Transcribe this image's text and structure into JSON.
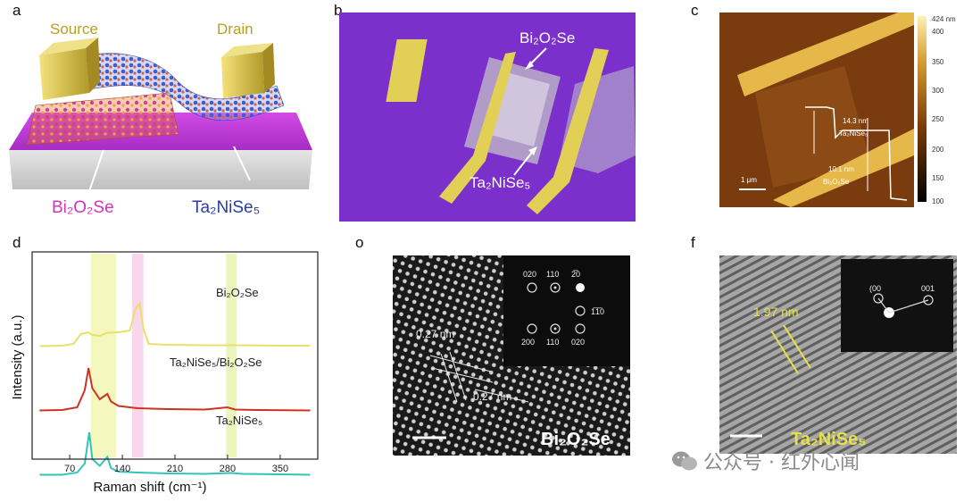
{
  "panel_labels": {
    "a": "a",
    "b": "b",
    "c": "c",
    "d": "d",
    "e": "o",
    "f": "f"
  },
  "panel_a": {
    "source": "Source",
    "drain": "Drain",
    "material1": "Bi₂O₂Se",
    "material2": "Ta₂NiSe₅",
    "colors": {
      "substrate_top": "#c23bd8",
      "contact": "#d8c44a"
    }
  },
  "panel_b": {
    "label_top": "Bi₂O₂Se",
    "label_bottom": "Ta₂NiSe₅",
    "colors": {
      "background": "#7a2ec9",
      "electrode": "#e2cf55"
    }
  },
  "panel_c": {
    "annotation1_line1": "14.3 nm",
    "annotation1_line2": "Ta₂NiSe₅",
    "annotation2_line1": "10.1 nm",
    "annotation2_line2": "Bi₂O₂Se",
    "scale_label": "1 μm",
    "colorbar_ticks": [
      "424 nm",
      "400",
      "350",
      "300",
      "250",
      "200",
      "150",
      "100"
    ]
  },
  "panel_d": {
    "ylabel": "Intensity (a.u.)",
    "xlabel": "Raman shift (cm⁻¹)"
  },
  "chart_data": {
    "type": "line",
    "xlabel": "Raman shift (cm⁻¹)",
    "ylabel": "Intensity (a.u.)",
    "xlim": [
      20,
      400
    ],
    "x_ticks": [
      70,
      140,
      210,
      280,
      350
    ],
    "series": [
      {
        "name": "Bi₂O₂Se",
        "color": "#e8e06a",
        "x": [
          30,
          60,
          75,
          85,
          95,
          100,
          110,
          120,
          135,
          150,
          158,
          163,
          168,
          175,
          200,
          250,
          300,
          350,
          390
        ],
        "y": [
          0.05,
          0.06,
          0.1,
          0.32,
          0.36,
          0.3,
          0.28,
          0.35,
          0.36,
          0.4,
          0.9,
          1.0,
          0.45,
          0.1,
          0.08,
          0.07,
          0.07,
          0.06,
          0.06
        ]
      },
      {
        "name": "Ta₂NiSe₅/Bi₂O₂Se",
        "color": "#cc3322",
        "x": [
          30,
          60,
          80,
          90,
          95,
          100,
          110,
          120,
          125,
          135,
          160,
          200,
          250,
          280,
          290,
          320,
          390
        ],
        "y": [
          0.05,
          0.06,
          0.12,
          0.5,
          1.0,
          0.55,
          0.3,
          0.42,
          0.25,
          0.15,
          0.1,
          0.08,
          0.07,
          0.12,
          0.07,
          0.06,
          0.05
        ]
      },
      {
        "name": "Ta₂NiSe₅",
        "color": "#33c4b8",
        "x": [
          30,
          60,
          80,
          90,
          96,
          100,
          110,
          120,
          125,
          135,
          160,
          200,
          250,
          285,
          300,
          350,
          390
        ],
        "y": [
          0.05,
          0.05,
          0.1,
          0.3,
          1.0,
          0.4,
          0.25,
          0.45,
          0.2,
          0.12,
          0.1,
          0.08,
          0.07,
          0.09,
          0.07,
          0.06,
          0.05
        ]
      }
    ],
    "highlight_bands": [
      {
        "from": 98,
        "to": 132,
        "color": "#f2f5a8"
      },
      {
        "from": 153,
        "to": 168,
        "color": "#f6c8e6"
      },
      {
        "from": 278,
        "to": 292,
        "color": "#e4f2a8"
      }
    ]
  },
  "panel_e": {
    "lattice1": "0.27 nm",
    "lattice2": "0.27 nm",
    "saed_top_labels": [
      "020",
      "110",
      "2̅0"
    ],
    "saed_right_label": "1̅1̅0",
    "saed_bottom_labels": [
      "200",
      "110",
      "020"
    ],
    "material": "Bi₂O₂Se"
  },
  "panel_f": {
    "spacing": "1.97 nm",
    "saed_label1": "(00",
    "saed_label2": "001",
    "material": "Ta₂NiSe₅"
  },
  "watermark": {
    "text": "公众号 · 红外心闻"
  }
}
